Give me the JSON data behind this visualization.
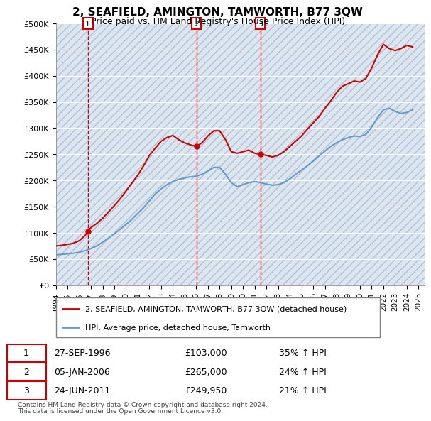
{
  "title": "2, SEAFIELD, AMINGTON, TAMWORTH, B77 3QW",
  "subtitle": "Price paid vs. HM Land Registry's House Price Index (HPI)",
  "sale_label": "2, SEAFIELD, AMINGTON, TAMWORTH, B77 3QW (detached house)",
  "hpi_label": "HPI: Average price, detached house, Tamworth",
  "sale_color": "#cc0000",
  "hpi_color": "#6699cc",
  "background_color": "#dce6f1",
  "plot_bg_hatch_color": "#c0cfe0",
  "ylim": [
    0,
    500000
  ],
  "yticks": [
    0,
    50000,
    100000,
    150000,
    200000,
    250000,
    300000,
    350000,
    400000,
    450000,
    500000
  ],
  "ytick_labels": [
    "£0",
    "£50K",
    "£100K",
    "£150K",
    "£200K",
    "£250K",
    "£300K",
    "£350K",
    "£400K",
    "£450K",
    "£500K"
  ],
  "xlim_start": 1994.0,
  "xlim_end": 2025.5,
  "transactions": [
    {
      "label": "1",
      "date": "27-SEP-1996",
      "price": 103000,
      "x": 1996.74,
      "pct": "35%",
      "dir": "↑"
    },
    {
      "label": "2",
      "date": "05-JAN-2006",
      "price": 265000,
      "x": 2006.01,
      "pct": "24%",
      "dir": "↑"
    },
    {
      "label": "3",
      "date": "24-JUN-2011",
      "price": 249950,
      "x": 2011.48,
      "pct": "21%",
      "dir": "↑"
    }
  ],
  "footnote1": "Contains HM Land Registry data © Crown copyright and database right 2024.",
  "footnote2": "This data is licensed under the Open Government Licence v3.0.",
  "sale_line": {
    "x": [
      1994.0,
      1994.5,
      1995.0,
      1995.5,
      1996.0,
      1996.5,
      1996.74,
      1997.0,
      1997.5,
      1998.0,
      1998.5,
      1999.0,
      1999.5,
      2000.0,
      2000.5,
      2001.0,
      2001.5,
      2002.0,
      2002.5,
      2003.0,
      2003.5,
      2004.0,
      2004.5,
      2005.0,
      2005.5,
      2006.01,
      2006.5,
      2007.0,
      2007.5,
      2008.0,
      2008.5,
      2009.0,
      2009.5,
      2010.0,
      2010.5,
      2011.0,
      2011.48,
      2012.0,
      2012.5,
      2013.0,
      2013.5,
      2014.0,
      2014.5,
      2015.0,
      2015.5,
      2016.0,
      2016.5,
      2017.0,
      2017.5,
      2018.0,
      2018.5,
      2019.0,
      2019.5,
      2020.0,
      2020.5,
      2021.0,
      2021.5,
      2022.0,
      2022.5,
      2023.0,
      2023.5,
      2024.0,
      2024.5
    ],
    "y": [
      75000,
      76000,
      78000,
      80000,
      85000,
      95000,
      103000,
      110000,
      118000,
      128000,
      140000,
      152000,
      165000,
      180000,
      195000,
      210000,
      228000,
      248000,
      262000,
      275000,
      282000,
      286000,
      278000,
      272000,
      268000,
      265000,
      272000,
      285000,
      295000,
      295000,
      278000,
      255000,
      252000,
      255000,
      258000,
      252000,
      249950,
      248000,
      245000,
      248000,
      255000,
      265000,
      275000,
      285000,
      298000,
      310000,
      322000,
      338000,
      352000,
      368000,
      380000,
      385000,
      390000,
      388000,
      395000,
      415000,
      440000,
      460000,
      452000,
      448000,
      452000,
      458000,
      455000
    ]
  },
  "hpi_line": {
    "x": [
      1994.0,
      1994.5,
      1995.0,
      1995.5,
      1996.0,
      1996.5,
      1997.0,
      1997.5,
      1998.0,
      1998.5,
      1999.0,
      1999.5,
      2000.0,
      2000.5,
      2001.0,
      2001.5,
      2002.0,
      2002.5,
      2003.0,
      2003.5,
      2004.0,
      2004.5,
      2005.0,
      2005.5,
      2006.0,
      2006.5,
      2007.0,
      2007.5,
      2008.0,
      2008.5,
      2009.0,
      2009.5,
      2010.0,
      2010.5,
      2011.0,
      2011.5,
      2012.0,
      2012.5,
      2013.0,
      2013.5,
      2014.0,
      2014.5,
      2015.0,
      2015.5,
      2016.0,
      2016.5,
      2017.0,
      2017.5,
      2018.0,
      2018.5,
      2019.0,
      2019.5,
      2020.0,
      2020.5,
      2021.0,
      2021.5,
      2022.0,
      2022.5,
      2023.0,
      2023.5,
      2024.0,
      2024.5
    ],
    "y": [
      58000,
      59000,
      60000,
      61000,
      63000,
      66000,
      70000,
      75000,
      82000,
      90000,
      98000,
      107000,
      116000,
      126000,
      137000,
      148000,
      161000,
      174000,
      184000,
      192000,
      198000,
      202000,
      205000,
      207000,
      208000,
      212000,
      218000,
      225000,
      225000,
      212000,
      196000,
      188000,
      192000,
      196000,
      198000,
      196000,
      193000,
      191000,
      192000,
      196000,
      203000,
      212000,
      220000,
      228000,
      237000,
      247000,
      256000,
      265000,
      272000,
      278000,
      282000,
      285000,
      284000,
      288000,
      302000,
      320000,
      335000,
      338000,
      332000,
      328000,
      330000,
      335000
    ]
  }
}
